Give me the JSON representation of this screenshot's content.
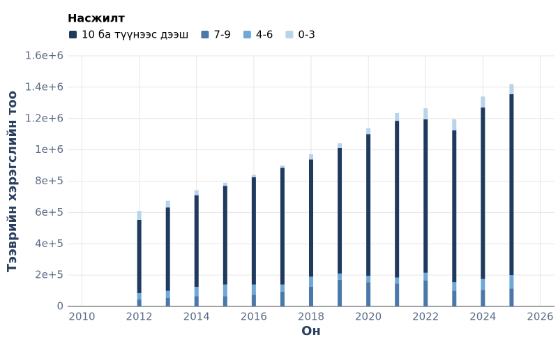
{
  "chart_data": {
    "type": "bar",
    "stacked": true,
    "legend_title": "Насжилт",
    "x_label": "Он",
    "y_label": "Тээврийн хэрэгслийн тоо",
    "x": [
      2012,
      2013,
      2014,
      2015,
      2016,
      2017,
      2018,
      2019,
      2020,
      2021,
      2022,
      2023,
      2024,
      2025
    ],
    "series": [
      {
        "name": "10 ба түүнээс дээш",
        "color": "#1f3a5f",
        "values": [
          468000,
          532000,
          585000,
          630000,
          685000,
          745000,
          748000,
          802000,
          905000,
          1000000,
          980000,
          970000,
          1095000,
          1155000
        ]
      },
      {
        "name": "7-9",
        "color": "#4a78a8",
        "values": [
          45000,
          55000,
          65000,
          65000,
          75000,
          95000,
          125000,
          170000,
          155000,
          145000,
          165000,
          100000,
          105000,
          115000
        ]
      },
      {
        "name": "4-6",
        "color": "#6fa8d6",
        "values": [
          40000,
          45000,
          60000,
          75000,
          65000,
          45000,
          65000,
          40000,
          40000,
          40000,
          50000,
          55000,
          70000,
          85000
        ]
      },
      {
        "name": "0-3",
        "color": "#b8d4ea",
        "values": [
          57000,
          43000,
          32000,
          20000,
          15000,
          15000,
          34000,
          30000,
          38000,
          50000,
          70000,
          70000,
          70000,
          65000
        ]
      }
    ],
    "xlim": [
      2009.5,
      2026.5
    ],
    "xticks": [
      2010,
      2012,
      2014,
      2016,
      2018,
      2020,
      2022,
      2024,
      2026
    ],
    "ylim": [
      0,
      1600000
    ],
    "yticks": [
      0,
      {
        "value": 200000,
        "label": "2e+5"
      },
      {
        "value": 400000,
        "label": "4e+5"
      },
      {
        "value": 600000,
        "label": "6e+5"
      },
      {
        "value": 800000,
        "label": "8e+5"
      },
      {
        "value": 1000000,
        "label": "1e+6"
      },
      {
        "value": 1200000,
        "label": "1.2e+6"
      },
      {
        "value": 1400000,
        "label": "1.4e+6"
      },
      {
        "value": 1600000,
        "label": "1.6e+6"
      }
    ],
    "grid": true
  }
}
